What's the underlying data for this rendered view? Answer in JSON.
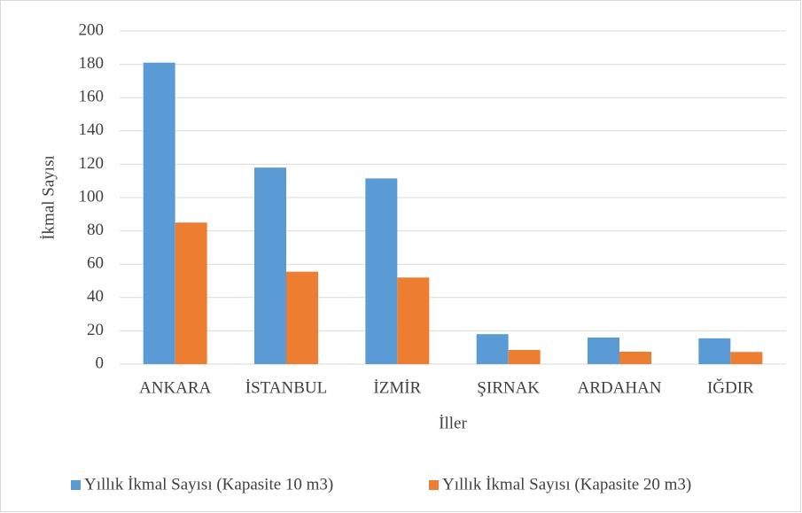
{
  "chart_data": {
    "type": "bar",
    "x_label": "İller",
    "y_label": "İkmal Sayısı",
    "categories": [
      "ANKARA",
      "İSTANBUL",
      "İZMİR",
      "ŞIRNAK",
      "ARDAHAN",
      "IĞDIR"
    ],
    "series": [
      {
        "name": "Yıllık İkmal Sayısı (Kapasite 10 m3)",
        "color": "#5b9bd5",
        "values": [
          181,
          118,
          111.5,
          18,
          16,
          15.5
        ]
      },
      {
        "name": "Yıllık İkmal Sayısı (Kapasite 20 m3)",
        "color": "#ed7d31",
        "values": [
          85,
          55.5,
          52,
          8.5,
          7.5,
          7.3
        ]
      }
    ],
    "ylim": [
      0,
      200
    ],
    "yticks": [
      0,
      20,
      40,
      60,
      80,
      100,
      120,
      140,
      160,
      180,
      200
    ],
    "grid": true,
    "legend": "bottom"
  }
}
